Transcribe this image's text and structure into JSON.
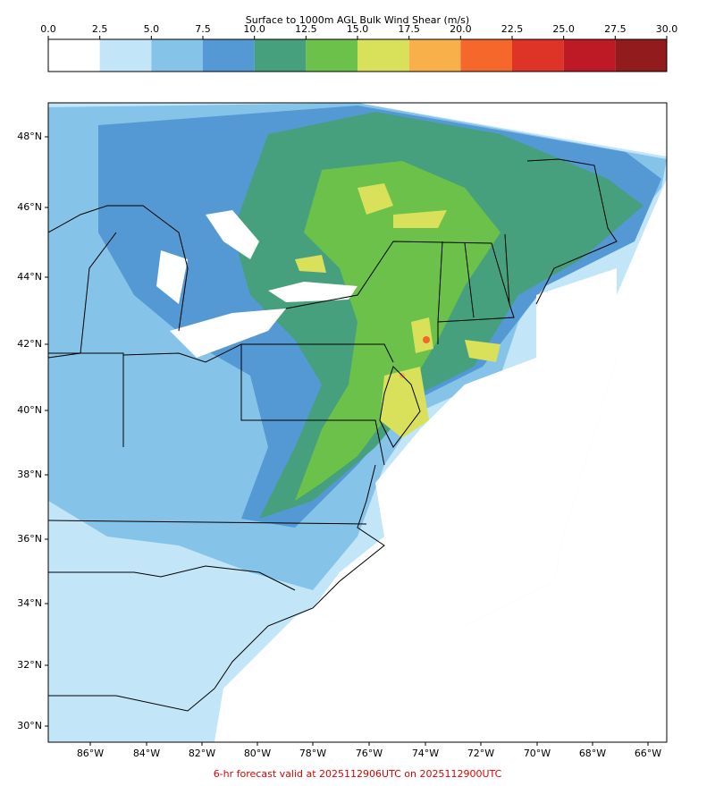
{
  "colorbar": {
    "title": "Surface to 1000m AGL Bulk Wind Shear (m/s)",
    "ticks": [
      {
        "value": 0,
        "label": "0.0"
      },
      {
        "value": 2.5,
        "label": "2.5"
      },
      {
        "value": 5,
        "label": "5.0"
      },
      {
        "value": 7.5,
        "label": "7.5"
      },
      {
        "value": 10,
        "label": "10.0"
      },
      {
        "value": 12.5,
        "label": "12.5"
      },
      {
        "value": 15,
        "label": "15.0"
      },
      {
        "value": 17.5,
        "label": "17.5"
      },
      {
        "value": 20,
        "label": "20.0"
      },
      {
        "value": 22.5,
        "label": "22.5"
      },
      {
        "value": 25,
        "label": "25.0"
      },
      {
        "value": 27.5,
        "label": "27.5"
      },
      {
        "value": 30,
        "label": "30.0"
      }
    ],
    "colors": [
      "#ffffff",
      "#c2e6f7",
      "#86c3e8",
      "#5499d3",
      "#46a07e",
      "#6bc14a",
      "#d9e05a",
      "#f8b04a",
      "#f5672b",
      "#de3428",
      "#be1a26",
      "#921b1e"
    ]
  },
  "map": {
    "lat_labels": [
      "48°N",
      "46°N",
      "44°N",
      "42°N",
      "40°N",
      "38°N",
      "36°N",
      "34°N",
      "32°N",
      "30°N"
    ],
    "lon_labels": [
      "86°W",
      "84°W",
      "82°W",
      "80°W",
      "78°W",
      "76°W",
      "74°W",
      "72°W",
      "70°W",
      "68°W",
      "66°W"
    ],
    "footer": "6-hr forecast valid at 2025112906UTC on 2025112900UTC"
  }
}
